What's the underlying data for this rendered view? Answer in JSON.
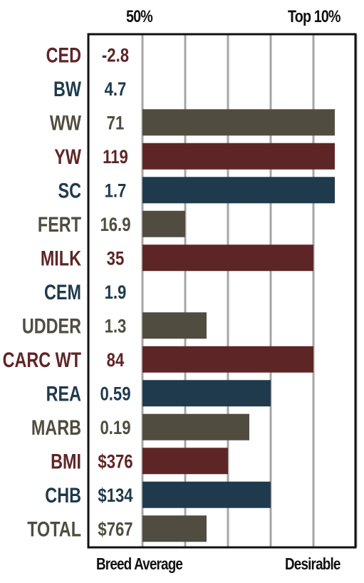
{
  "header": {
    "left_label": "50%",
    "right_label": "Top 10%"
  },
  "footer": {
    "left_label": "Breed Average",
    "right_label": "Desirable"
  },
  "colors": {
    "red": "#5e2527",
    "blue": "#1f3a4c",
    "gray": "#514c40",
    "gridline": "#a6a6a6",
    "frame": "#111111"
  },
  "chart_data": {
    "type": "bar",
    "orientation": "horizontal",
    "scale": [
      "Breed Average",
      "Desirable"
    ],
    "grid": true,
    "categories": [
      "CED",
      "BW",
      "WW",
      "YW",
      "SC",
      "FERT",
      "MILK",
      "CEM",
      "UDDER",
      "CARC WT",
      "REA",
      "MARB",
      "BMI",
      "CHB",
      "TOTAL"
    ],
    "values": [
      "-2.8",
      "4.7",
      "71",
      "119",
      "1.7",
      "16.9",
      "35",
      "1.9",
      "1.3",
      "84",
      "0.59",
      "0.19",
      "$376",
      "$134",
      "$767"
    ],
    "bar_levels": [
      0,
      0,
      4.5,
      4.5,
      4.5,
      1,
      4,
      0,
      1.5,
      4,
      3,
      2.5,
      2,
      3,
      1.5
    ],
    "bar_level_max": 5,
    "row_colors": [
      "red",
      "blue",
      "gray",
      "red",
      "blue",
      "gray",
      "red",
      "blue",
      "gray",
      "red",
      "blue",
      "gray",
      "red",
      "blue",
      "gray"
    ]
  }
}
